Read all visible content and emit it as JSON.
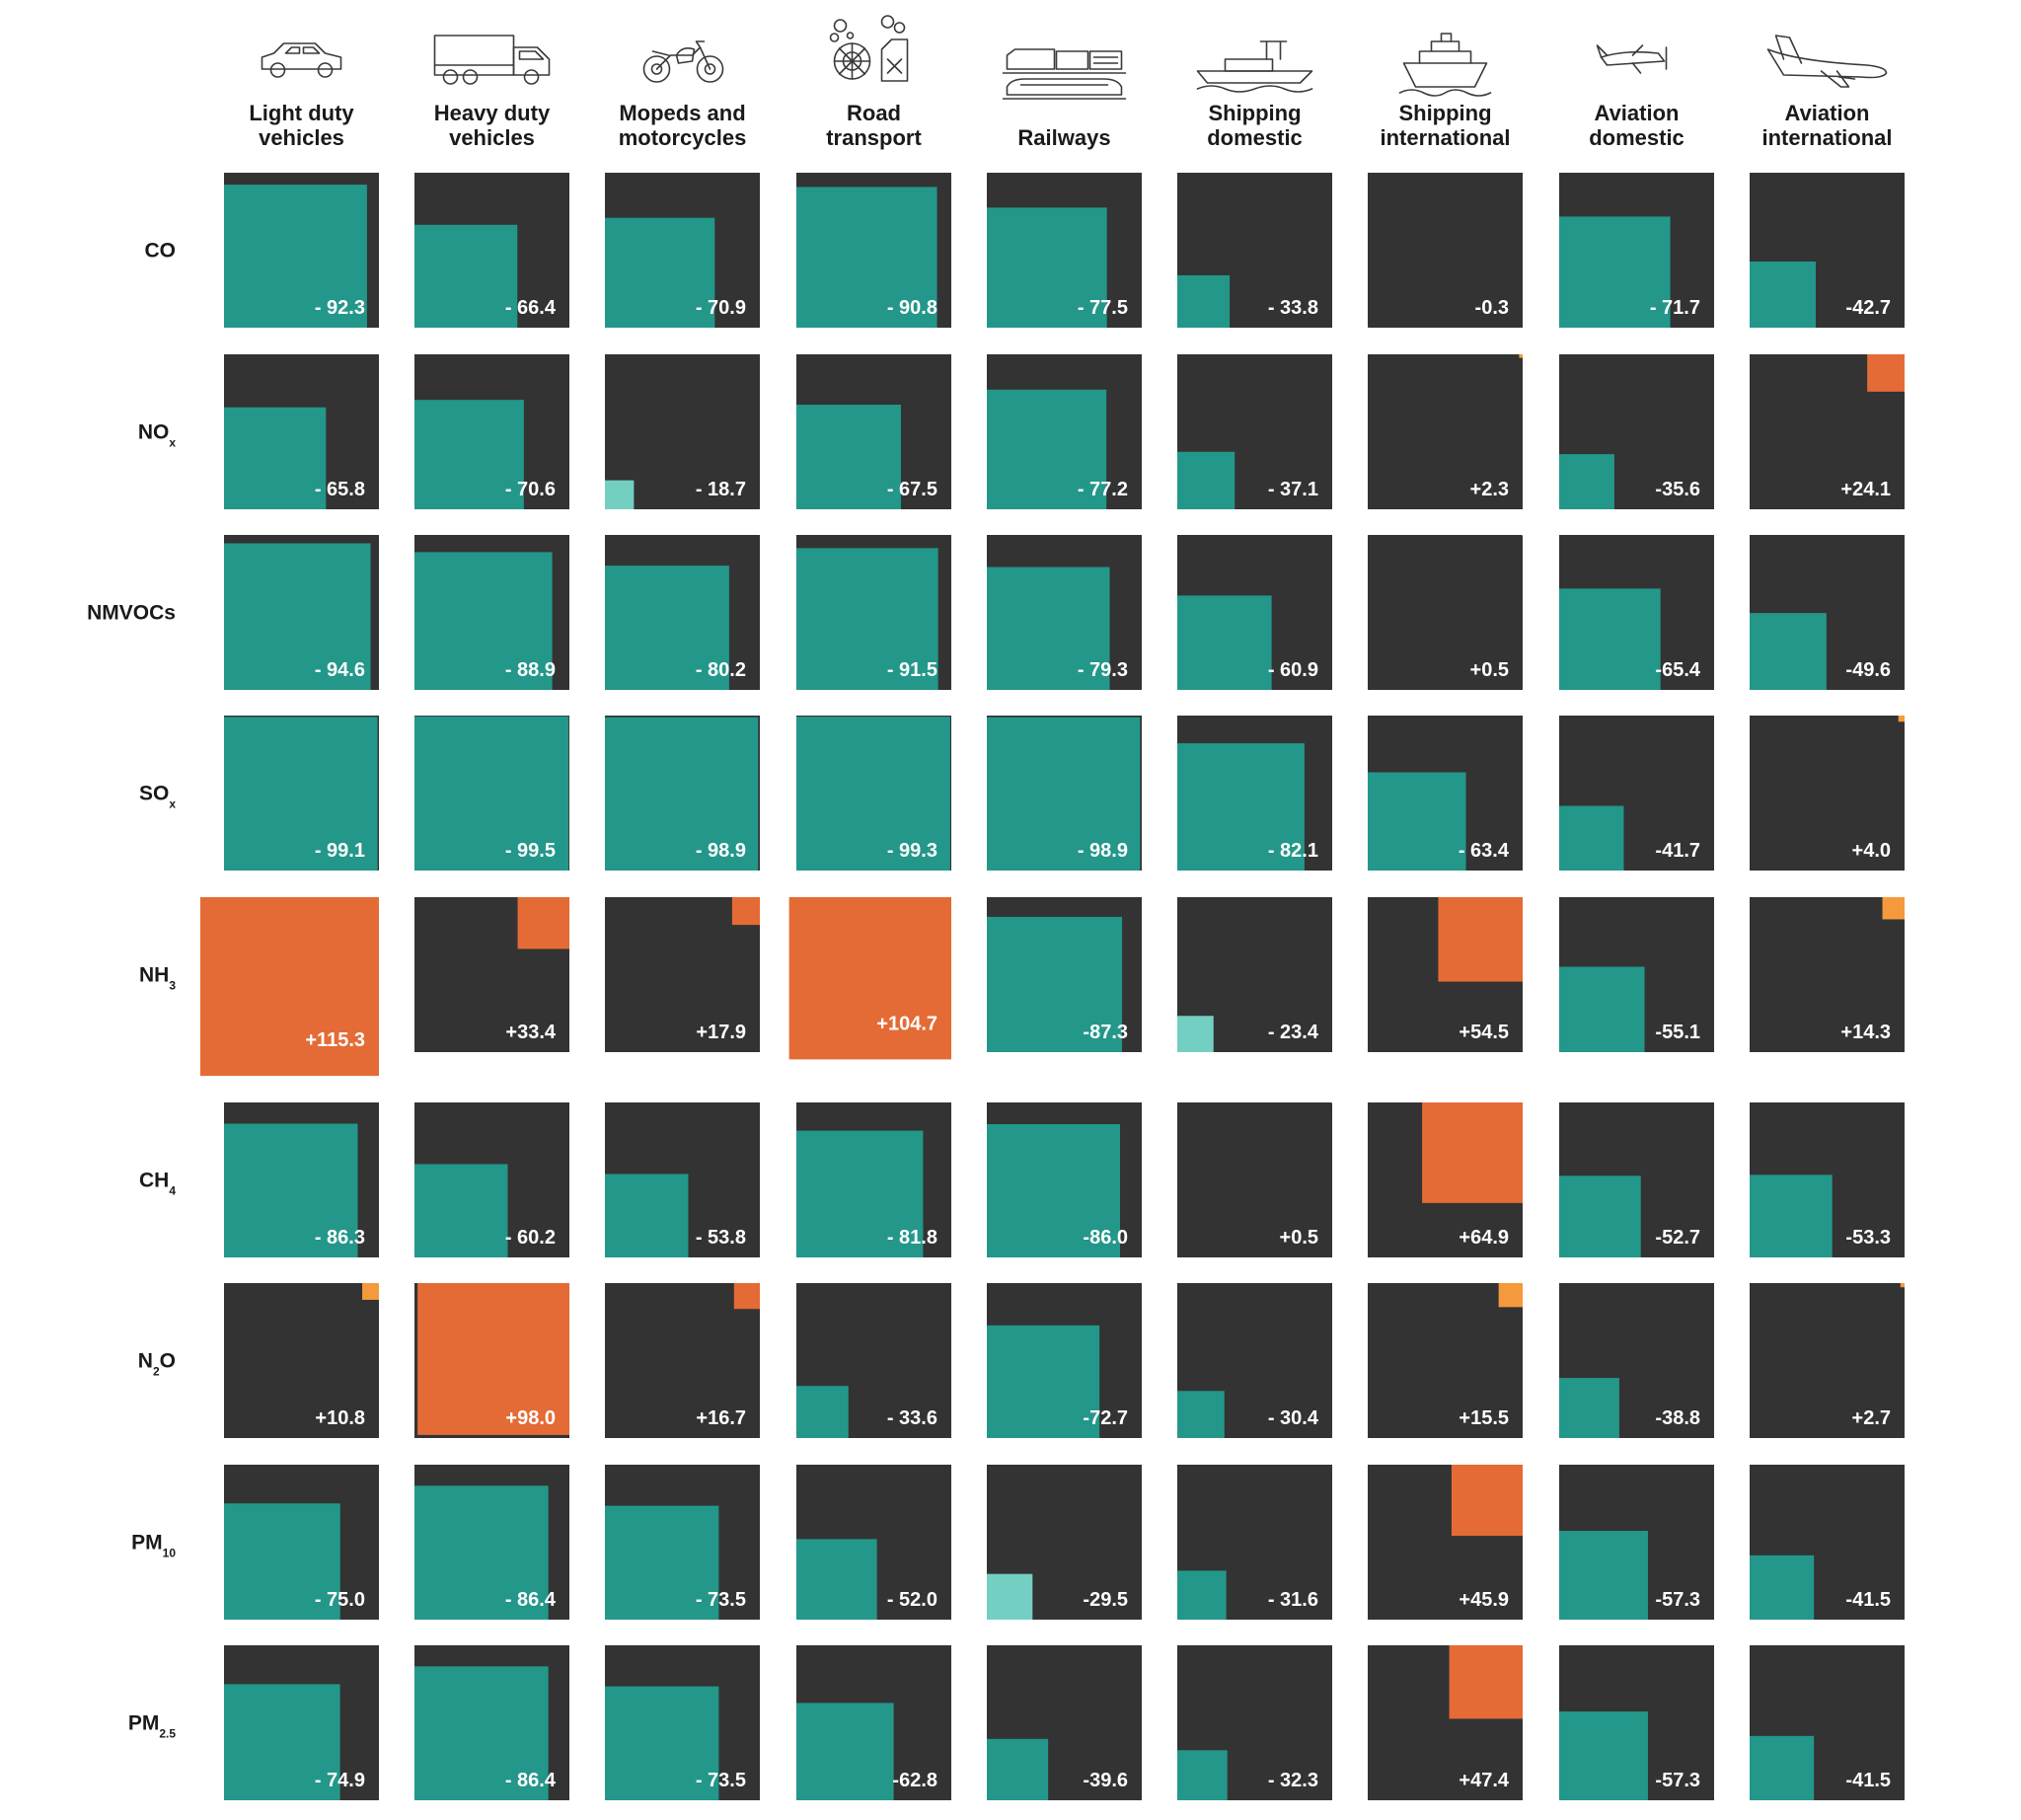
{
  "chart_data": {
    "type": "heatmap",
    "title": "",
    "columns": [
      {
        "line1": "Light duty",
        "line2": "vehicles",
        "icon": "car-icon"
      },
      {
        "line1": "Heavy duty",
        "line2": "vehicles",
        "icon": "truck-icon"
      },
      {
        "line1": "Mopeds and",
        "line2": "motorcycles",
        "icon": "motorcycle-icon"
      },
      {
        "line1": "Road",
        "line2": "transport",
        "icon": "road-transport-icon"
      },
      {
        "line1": "",
        "line2": "Railways",
        "icon": "train-icon"
      },
      {
        "line1": "Shipping",
        "line2": "domestic",
        "icon": "ferry-icon"
      },
      {
        "line1": "Shipping",
        "line2": "international",
        "icon": "ship-icon"
      },
      {
        "line1": "Aviation",
        "line2": "domestic",
        "icon": "propeller-plane-icon"
      },
      {
        "line1": "Aviation",
        "line2": "international",
        "icon": "jet-plane-icon"
      }
    ],
    "rows": [
      {
        "main": "CO",
        "sub": ""
      },
      {
        "main": "NO",
        "sub": "x"
      },
      {
        "main": "NMVOCs",
        "sub": ""
      },
      {
        "main": "SO",
        "sub": "x"
      },
      {
        "main": "NH",
        "sub": "3"
      },
      {
        "main": "CH",
        "sub": "4"
      },
      {
        "main": "N",
        "sub": "2",
        "tail": "O"
      },
      {
        "main": "PM",
        "sub": "10"
      },
      {
        "main": "PM",
        "sub": "2.5"
      }
    ],
    "values": [
      [
        -92.3,
        -66.4,
        -70.9,
        -90.8,
        -77.5,
        -33.8,
        -0.3,
        -71.7,
        -42.7
      ],
      [
        -65.8,
        -70.6,
        -18.7,
        -67.5,
        -77.2,
        -37.1,
        2.3,
        -35.6,
        24.1
      ],
      [
        -94.6,
        -88.9,
        -80.2,
        -91.5,
        -79.3,
        -60.9,
        0.5,
        -65.4,
        -49.6
      ],
      [
        -99.1,
        -99.5,
        -98.9,
        -99.3,
        -98.9,
        -82.1,
        -63.4,
        -41.7,
        4.0
      ],
      [
        115.3,
        33.4,
        17.9,
        104.7,
        -87.3,
        -23.4,
        54.5,
        -55.1,
        14.3
      ],
      [
        -86.3,
        -60.2,
        -53.8,
        -81.8,
        -86.0,
        0.5,
        64.9,
        -52.7,
        -53.3
      ],
      [
        10.8,
        98.0,
        16.7,
        -33.6,
        -72.7,
        -30.4,
        15.5,
        -38.8,
        2.7
      ],
      [
        -75.0,
        -86.4,
        -73.5,
        -52.0,
        -29.5,
        -31.6,
        45.9,
        -57.3,
        -41.5
      ],
      [
        -74.9,
        -86.4,
        -73.5,
        -62.8,
        -39.6,
        -32.3,
        47.4,
        -57.3,
        -41.5
      ]
    ],
    "labels": [
      [
        "- 92.3",
        "- 66.4",
        "- 70.9",
        "- 90.8",
        "- 77.5",
        "- 33.8",
        "-0.3",
        "- 71.7",
        "-42.7"
      ],
      [
        "- 65.8",
        "- 70.6",
        "- 18.7",
        "- 67.5",
        "- 77.2",
        "- 37.1",
        "+2.3",
        "-35.6",
        "+24.1"
      ],
      [
        "- 94.6",
        "- 88.9",
        "- 80.2",
        "- 91.5",
        "- 79.3",
        "- 60.9",
        "+0.5",
        "-65.4",
        "-49.6"
      ],
      [
        "- 99.1",
        "- 99.5",
        "- 98.9",
        "- 99.3",
        "- 98.9",
        "- 82.1",
        "- 63.4",
        "-41.7",
        "+4.0"
      ],
      [
        "+115.3",
        "+33.4",
        "+17.9",
        "+104.7",
        "-87.3",
        "- 23.4",
        "+54.5",
        "-55.1",
        "+14.3"
      ],
      [
        "- 86.3",
        "- 60.2",
        "- 53.8",
        "- 81.8",
        "-86.0",
        "+0.5",
        "+64.9",
        "-52.7",
        "-53.3"
      ],
      [
        "+10.8",
        "+98.0",
        "+16.7",
        "- 33.6",
        "-72.7",
        "- 30.4",
        "+15.5",
        "-38.8",
        "+2.7"
      ],
      [
        "- 75.0",
        "- 86.4",
        "- 73.5",
        "- 52.0",
        "-29.5",
        "- 31.6",
        "+45.9",
        "-57.3",
        "-41.5"
      ],
      [
        "- 74.9",
        "- 86.4",
        "- 73.5",
        "-62.8",
        "-39.6",
        "- 32.3",
        "+47.4",
        "-57.3",
        "-41.5"
      ]
    ],
    "colors": {
      "background": "#333333",
      "decrease": "#23978a",
      "decrease_small": "#74cfc3",
      "increase": "#e46b35",
      "increase_small": "#f59a3c"
    },
    "legend": "none",
    "grid": false
  }
}
